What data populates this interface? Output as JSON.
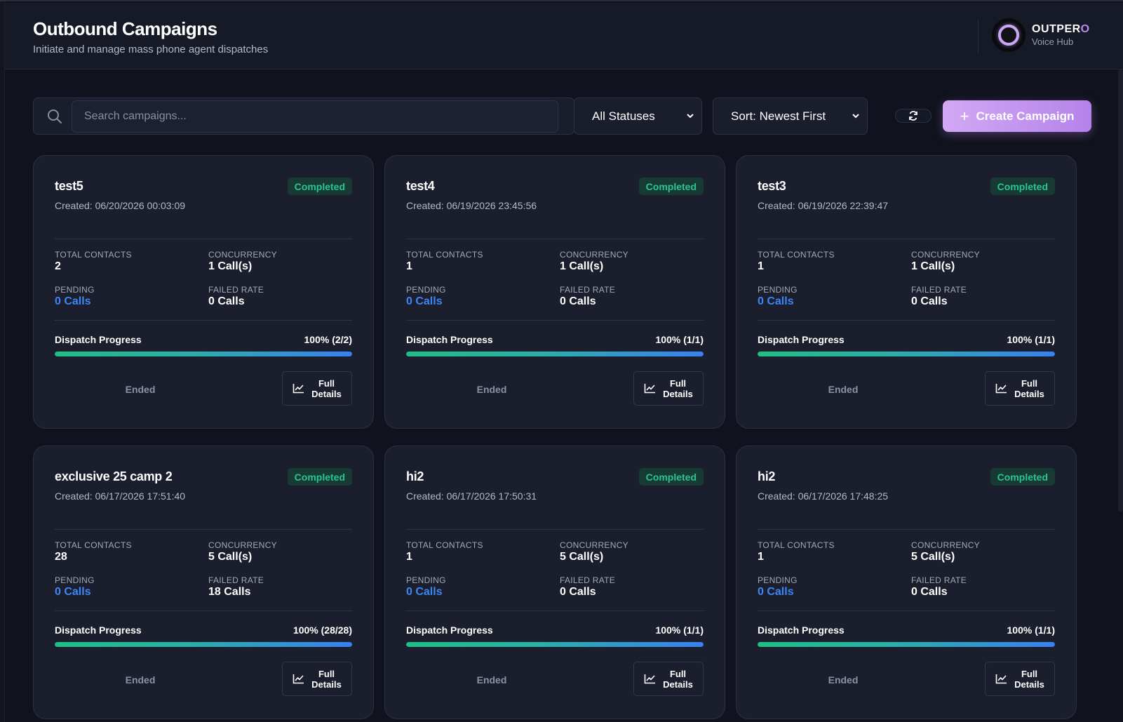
{
  "header": {
    "title": "Outbound Campaigns",
    "subtitle": "Initiate and manage mass phone agent dispatches",
    "brand_main": "OUTPER",
    "brand_accent": "O",
    "brand_tag": "Voice Hub"
  },
  "toolbar": {
    "search_placeholder": "Search campaigns...",
    "status_filter": "All Statuses",
    "sort": "Sort: Newest First",
    "create_label": "Create Campaign"
  },
  "labels": {
    "total_contacts": "TOTAL CONTACTS",
    "concurrency": "CONCURRENCY",
    "pending": "PENDING",
    "failed_rate": "FAILED RATE",
    "dispatch_progress": "Dispatch Progress",
    "ended": "Ended",
    "full_details_1": "Full",
    "full_details_2": "Details"
  },
  "campaigns": [
    {
      "name": "test5",
      "status": "Completed",
      "created": "Created: 06/20/2026 00:03:09",
      "total_contacts": "2",
      "concurrency": "1 Call(s)",
      "pending": "0 Calls",
      "failed_rate": "0 Calls",
      "progress_text": "100% (2/2)",
      "progress": 1.0
    },
    {
      "name": "test4",
      "status": "Completed",
      "created": "Created: 06/19/2026 23:45:56",
      "total_contacts": "1",
      "concurrency": "1 Call(s)",
      "pending": "0 Calls",
      "failed_rate": "0 Calls",
      "progress_text": "100% (1/1)",
      "progress": 1.0
    },
    {
      "name": "test3",
      "status": "Completed",
      "created": "Created: 06/19/2026 22:39:47",
      "total_contacts": "1",
      "concurrency": "1 Call(s)",
      "pending": "0 Calls",
      "failed_rate": "0 Calls",
      "progress_text": "100% (1/1)",
      "progress": 1.0
    },
    {
      "name": "exclusive 25 camp 2",
      "status": "Completed",
      "created": "Created: 06/17/2026 17:51:40",
      "total_contacts": "28",
      "concurrency": "5 Call(s)",
      "pending": "0 Calls",
      "failed_rate": "18 Calls",
      "progress_text": "100% (28/28)",
      "progress": 1.0
    },
    {
      "name": "hi2",
      "status": "Completed",
      "created": "Created: 06/17/2026 17:50:31",
      "total_contacts": "1",
      "concurrency": "5 Call(s)",
      "pending": "0 Calls",
      "failed_rate": "0 Calls",
      "progress_text": "100% (1/1)",
      "progress": 1.0
    },
    {
      "name": "hi2",
      "status": "Completed",
      "created": "Created: 06/17/2026 17:48:25",
      "total_contacts": "1",
      "concurrency": "5 Call(s)",
      "pending": "0 Calls",
      "failed_rate": "0 Calls",
      "progress_text": "100% (1/1)",
      "progress": 1.0
    }
  ],
  "colors": {
    "accent": "#b483ea",
    "status_completed": "#2bc48f",
    "pending_blue": "#3d86f5"
  }
}
